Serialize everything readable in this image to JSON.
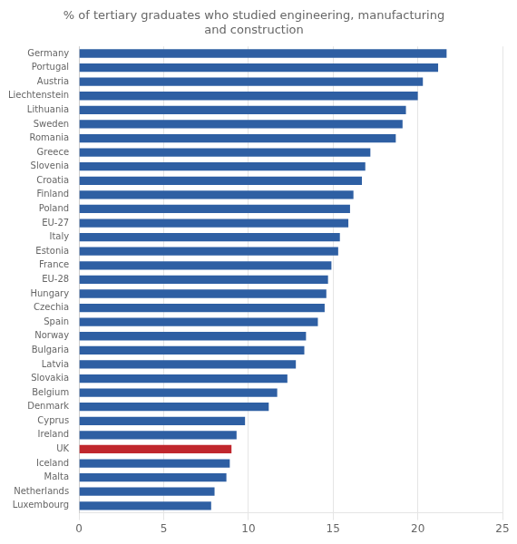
{
  "chart_data": {
    "type": "bar",
    "orientation": "horizontal",
    "title": "% of tertiary graduates who studied engineering, manufacturing\nand construction",
    "categories": [
      "Germany",
      "Portugal",
      "Austria",
      "Liechtenstein",
      "Lithuania",
      "Sweden",
      "Romania",
      "Greece",
      "Slovenia",
      "Croatia",
      "Finland",
      "Poland",
      "EU-27",
      "Italy",
      "Estonia",
      "France",
      "EU-28",
      "Hungary",
      "Czechia",
      "Spain",
      "Norway",
      "Bulgaria",
      "Latvia",
      "Slovakia",
      "Belgium",
      "Denmark",
      "Cyprus",
      "Ireland",
      "UK",
      "Iceland",
      "Malta",
      "Netherlands",
      "Luxembourg"
    ],
    "values": [
      21.7,
      21.2,
      20.3,
      20.0,
      19.3,
      19.1,
      18.7,
      17.2,
      16.9,
      16.7,
      16.2,
      16.0,
      15.9,
      15.4,
      15.3,
      14.9,
      14.7,
      14.6,
      14.5,
      14.1,
      13.4,
      13.3,
      12.8,
      12.3,
      11.7,
      11.2,
      9.8,
      9.3,
      9.0,
      8.9,
      8.7,
      8.0,
      7.8
    ],
    "colors": [
      "#2E5FA3",
      "#2E5FA3",
      "#2E5FA3",
      "#2E5FA3",
      "#2E5FA3",
      "#2E5FA3",
      "#2E5FA3",
      "#2E5FA3",
      "#2E5FA3",
      "#2E5FA3",
      "#2E5FA3",
      "#2E5FA3",
      "#2E5FA3",
      "#2E5FA3",
      "#2E5FA3",
      "#2E5FA3",
      "#2E5FA3",
      "#2E5FA3",
      "#2E5FA3",
      "#2E5FA3",
      "#2E5FA3",
      "#2E5FA3",
      "#2E5FA3",
      "#2E5FA3",
      "#2E5FA3",
      "#2E5FA3",
      "#2E5FA3",
      "#2E5FA3",
      "#C0272D",
      "#2E5FA3",
      "#2E5FA3",
      "#2E5FA3",
      "#2E5FA3"
    ],
    "xlim": [
      0,
      25
    ],
    "xticks": [
      0,
      5,
      10,
      15,
      20,
      25
    ],
    "grid": true
  }
}
